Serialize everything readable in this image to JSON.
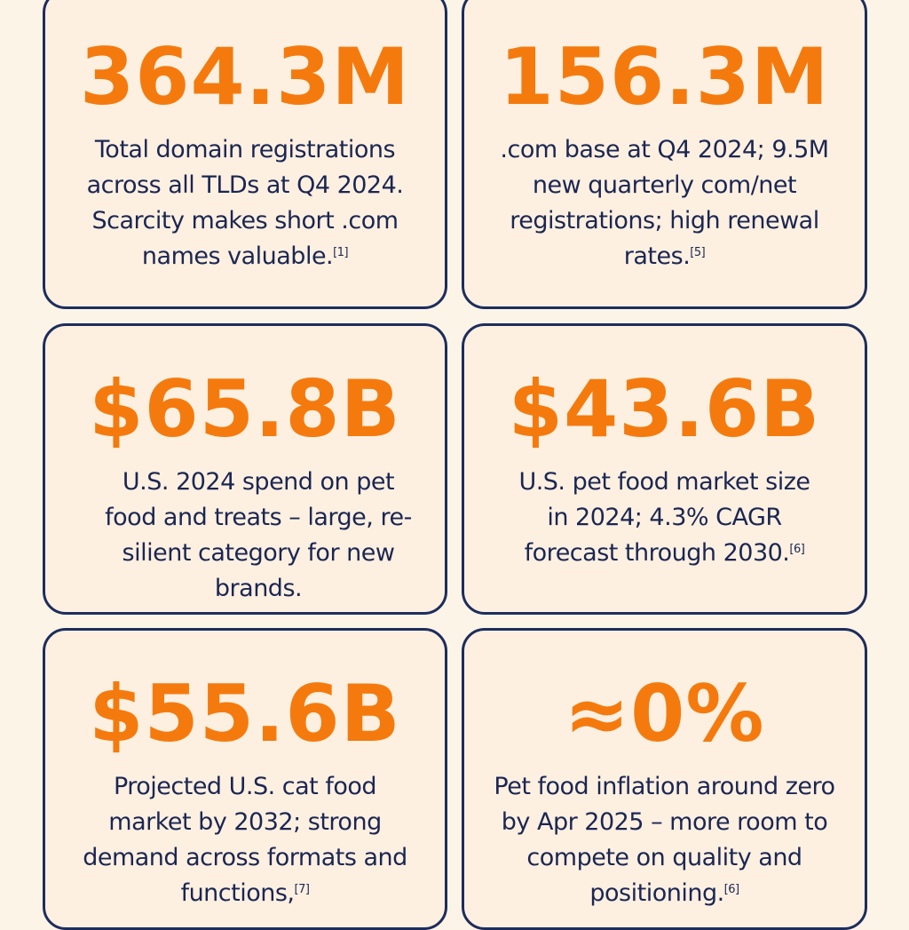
{
  "colors": {
    "accent": "#f57a0e",
    "border": "#1d2d5c",
    "text": "#1b2652",
    "card": "#fdf0e1",
    "background": "#fdf4e8"
  },
  "cards": [
    {
      "value": "364.3M",
      "text": "Total domain registrations across all TLDs at Q4 2024. Scarcity makes short .com names valuable.",
      "ref": "[1]"
    },
    {
      "value": "156.3M",
      "text": ".com base at Q4 2024; 9.5M new quarterly com/net registrations; high renewal rates.",
      "ref": "[5]"
    },
    {
      "value": "$65.8B",
      "text": "U.S. 2024 spend on pet food and treats – large, re-silient category for new brands.",
      "ref": ""
    },
    {
      "value": "$43.6B",
      "text": "U.S. pet food market size in 2024; 4.3% CAGR forecast through 2030.",
      "ref": "[6]"
    },
    {
      "value": "$55.6B",
      "text": "Projected U.S. cat food market by 2032; strong demand across formats and functions,",
      "ref": "[7]"
    },
    {
      "value": "≈0%",
      "text": "Pet food inflation around zero by Apr 2025 – more room to compete on quality and positioning.",
      "ref": "[6]"
    }
  ]
}
